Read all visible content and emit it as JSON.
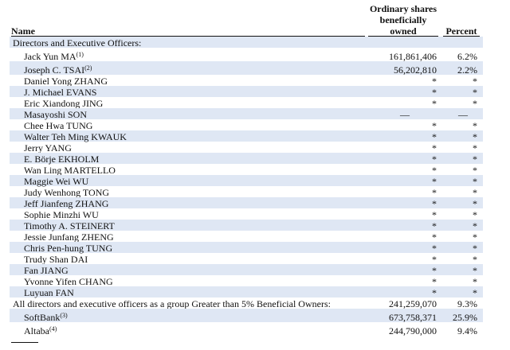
{
  "header": {
    "name": "Name",
    "shares_lines": [
      "Ordinary shares",
      "beneficially",
      "owned"
    ],
    "percent": "Percent"
  },
  "sections": [
    {
      "heading": {
        "label": "Directors and Executive Officers:"
      },
      "rows": [
        {
          "name": "Jack Yun MA",
          "note": "(1)",
          "shares": "161,861,406",
          "percent": "6.2%"
        },
        {
          "name": "Joseph C. TSAI",
          "note": "(2)",
          "shares": "56,202,810",
          "percent": "2.2%"
        },
        {
          "name": "Daniel Yong ZHANG",
          "shares": "*",
          "percent": "*"
        },
        {
          "name": "J. Michael EVANS",
          "shares": "*",
          "percent": "*"
        },
        {
          "name": "Eric Xiandong JING",
          "shares": "*",
          "percent": "*"
        },
        {
          "name": "Masayoshi SON",
          "shares": "—",
          "percent": "—"
        },
        {
          "name": "Chee Hwa TUNG",
          "shares": "*",
          "percent": "*"
        },
        {
          "name": "Walter Teh Ming KWAUK",
          "shares": "*",
          "percent": "*"
        },
        {
          "name": "Jerry YANG",
          "shares": "*",
          "percent": "*"
        },
        {
          "name": "E. Börje EKHOLM",
          "shares": "*",
          "percent": "*"
        },
        {
          "name": "Wan Ling MARTELLO",
          "shares": "*",
          "percent": "*"
        },
        {
          "name": "Maggie Wei WU",
          "shares": "*",
          "percent": "*"
        },
        {
          "name": "Judy Wenhong TONG",
          "shares": "*",
          "percent": "*"
        },
        {
          "name": "Jeff Jianfeng ZHANG",
          "shares": "*",
          "percent": "*"
        },
        {
          "name": "Sophie Minzhi WU",
          "shares": "*",
          "percent": "*"
        },
        {
          "name": "Timothy A. STEINERT",
          "shares": "*",
          "percent": "*"
        },
        {
          "name": "Jessie Junfang ZHENG",
          "shares": "*",
          "percent": "*"
        },
        {
          "name": "Chris Pen-hung TUNG",
          "shares": "*",
          "percent": "*"
        },
        {
          "name": "Trudy Shan DAI",
          "shares": "*",
          "percent": "*"
        },
        {
          "name": "Fan JIANG",
          "shares": "*",
          "percent": "*"
        },
        {
          "name": "Yvonne Yifen CHANG",
          "shares": "*",
          "percent": "*"
        },
        {
          "name": "Luyuan FAN",
          "shares": "*",
          "percent": "*"
        }
      ]
    },
    {
      "heading": {
        "label": "All directors and executive officers as a group Greater than 5% Beneficial Owners:",
        "shares": "241,259,070",
        "percent": "9.3%"
      },
      "rows": [
        {
          "name": "SoftBank",
          "note": "(3)",
          "shares": "673,758,371",
          "percent": "25.9%"
        },
        {
          "name": "Altaba",
          "note": "(4)",
          "shares": "244,790,000",
          "percent": "9.4%"
        }
      ]
    }
  ]
}
